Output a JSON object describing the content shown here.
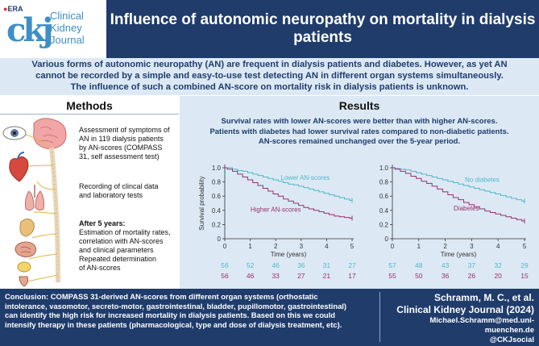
{
  "header": {
    "badge": "ERA",
    "logo_letters": "ckj",
    "journal_name_line1": "Clinical",
    "journal_name_line2": "Kidney",
    "journal_name_line3": "Journal",
    "title": "Influence of autonomic neuropathy on mortality in dialysis patients",
    "bg_color": "#1f3c6b",
    "accent_color": "#3f8fc5"
  },
  "intro": {
    "line1": "Various forms of autonomic neuropathy (AN) are frequent in dialysis patients and diabetes. However, as yet AN",
    "line2": "cannot be recorded by a simple and easy-to-use test detecting AN in different organ systems simultaneously.",
    "line3": "The influence of such a combined AN-score on mortality risk in dialysis patients is unknown."
  },
  "methods": {
    "title": "Methods",
    "step1_l1": "Assessment of symptoms of",
    "step1_l2": "AN in 119 dialysis patients",
    "step1_l3": "by AN-scores (COMPASS",
    "step1_l4": "31, self assessment test)",
    "step2_l1": "Recording of clincal data",
    "step2_l2": "and laboratory tests",
    "step3_head": "After 5 years:",
    "step3_l1": "Estimation of mortality rates,",
    "step3_l2": "correlation with AN-scores",
    "step3_l3": "and clinical parameters",
    "step3_l4": "Repeated determination",
    "step3_l5": "of AN-scores",
    "icons": [
      "eye-icon",
      "brain-spine-icon",
      "heart-icon",
      "lungs-icon",
      "stomach-icon",
      "intestine-icon",
      "bladder-icon",
      "penis-icon"
    ]
  },
  "results": {
    "title": "Results",
    "line1": "Survival rates with lower AN-scores were better than with higher AN-scores.",
    "line2": "Patients with diabetes had lower survival rates compared to non-diabetic patients.",
    "line3": "AN-scores remained unchanged over the 5-year period."
  },
  "chart_data": [
    {
      "type": "line",
      "title": "",
      "xlabel": "Time (years)",
      "ylabel": "Survival probability",
      "xlim": [
        0,
        5
      ],
      "ylim": [
        0,
        1.0
      ],
      "x_ticks": [
        "0",
        "1",
        "2",
        "3",
        "4",
        "5"
      ],
      "y_ticks": [
        "0",
        "0.2",
        "0.4",
        "0.6",
        "0.8",
        "1.0"
      ],
      "series": [
        {
          "name": "Lower AN-scores",
          "color": "#4fb8c9",
          "x": [
            0,
            0.1,
            0.3,
            0.5,
            0.7,
            0.9,
            1.1,
            1.3,
            1.5,
            1.7,
            1.9,
            2.1,
            2.3,
            2.5,
            2.7,
            2.9,
            3.1,
            3.3,
            3.5,
            3.7,
            3.9,
            4.1,
            4.3,
            4.5,
            4.7,
            4.9,
            5.0
          ],
          "y": [
            1.0,
            1.0,
            0.98,
            0.96,
            0.95,
            0.93,
            0.91,
            0.89,
            0.87,
            0.85,
            0.83,
            0.81,
            0.79,
            0.77,
            0.76,
            0.74,
            0.72,
            0.7,
            0.68,
            0.66,
            0.64,
            0.62,
            0.6,
            0.58,
            0.56,
            0.54,
            0.54
          ],
          "at_risk": [
            "56",
            "52",
            "46",
            "36",
            "31",
            "27"
          ]
        },
        {
          "name": "Higher AN-scores",
          "color": "#9a2f6a",
          "x": [
            0,
            0.1,
            0.3,
            0.5,
            0.7,
            0.9,
            1.1,
            1.3,
            1.5,
            1.7,
            1.9,
            2.1,
            2.3,
            2.5,
            2.7,
            2.9,
            3.1,
            3.3,
            3.5,
            3.7,
            3.9,
            4.1,
            4.3,
            4.5,
            4.7,
            4.9,
            5.0
          ],
          "y": [
            1.0,
            0.98,
            0.95,
            0.91,
            0.87,
            0.83,
            0.79,
            0.75,
            0.71,
            0.67,
            0.63,
            0.6,
            0.56,
            0.53,
            0.5,
            0.47,
            0.44,
            0.42,
            0.4,
            0.38,
            0.36,
            0.34,
            0.32,
            0.31,
            0.3,
            0.29,
            0.29
          ],
          "at_risk": [
            "56",
            "46",
            "33",
            "27",
            "21",
            "17"
          ]
        }
      ]
    },
    {
      "type": "line",
      "title": "",
      "xlabel": "Time (years)",
      "ylabel": "",
      "xlim": [
        0,
        5
      ],
      "ylim": [
        0,
        1.0
      ],
      "x_ticks": [
        "0",
        "1",
        "2",
        "3",
        "4",
        "5"
      ],
      "y_ticks": [
        "0",
        "0.2",
        "0.4",
        "0.6",
        "0.8",
        "1.0"
      ],
      "series": [
        {
          "name": "No diabetes",
          "color": "#4fb8c9",
          "x": [
            0,
            0.1,
            0.3,
            0.5,
            0.7,
            0.9,
            1.1,
            1.3,
            1.5,
            1.7,
            1.9,
            2.1,
            2.3,
            2.5,
            2.7,
            2.9,
            3.1,
            3.3,
            3.5,
            3.7,
            3.9,
            4.1,
            4.3,
            4.5,
            4.7,
            4.9,
            5.0
          ],
          "y": [
            1.0,
            0.99,
            0.98,
            0.97,
            0.95,
            0.93,
            0.91,
            0.89,
            0.87,
            0.85,
            0.83,
            0.81,
            0.79,
            0.77,
            0.75,
            0.73,
            0.71,
            0.69,
            0.67,
            0.65,
            0.63,
            0.61,
            0.59,
            0.57,
            0.55,
            0.53,
            0.53
          ],
          "at_risk": [
            "57",
            "48",
            "43",
            "37",
            "32",
            "29"
          ]
        },
        {
          "name": "Diabetes",
          "color": "#9a2f6a",
          "x": [
            0,
            0.1,
            0.3,
            0.5,
            0.7,
            0.9,
            1.1,
            1.3,
            1.5,
            1.7,
            1.9,
            2.1,
            2.3,
            2.5,
            2.7,
            2.9,
            3.1,
            3.3,
            3.5,
            3.7,
            3.9,
            4.1,
            4.3,
            4.5,
            4.7,
            4.9,
            5.0
          ],
          "y": [
            1.0,
            0.98,
            0.95,
            0.92,
            0.88,
            0.85,
            0.81,
            0.78,
            0.74,
            0.7,
            0.66,
            0.62,
            0.58,
            0.55,
            0.51,
            0.48,
            0.45,
            0.42,
            0.39,
            0.37,
            0.35,
            0.33,
            0.31,
            0.29,
            0.27,
            0.25,
            0.25
          ],
          "at_risk": [
            "55",
            "50",
            "36",
            "26",
            "20",
            "15"
          ]
        }
      ]
    }
  ],
  "footer": {
    "conclusion_l1": "Conclusion: COMPASS 31-derived AN-scores from different organ systems (orthostatic",
    "conclusion_l2": "intolerance, vasomotor, secreto-motor, gastrointestinal, bladder, pupillomotor, gastrointestinal)",
    "conclusion_l3": "can identify the high risk for increased mortality in dialysis patients. Based on this we could",
    "conclusion_l4": "intensify therapy in these patients (pharmacological, type and dose of dialysis treatment, etc).",
    "authors": "Schramm, M. C., et al.",
    "journal": "Clinical Kidney Journal (2024)",
    "email": "Michael.Schramm@med.uni-muenchen.de",
    "social": "@CKJsocial"
  }
}
